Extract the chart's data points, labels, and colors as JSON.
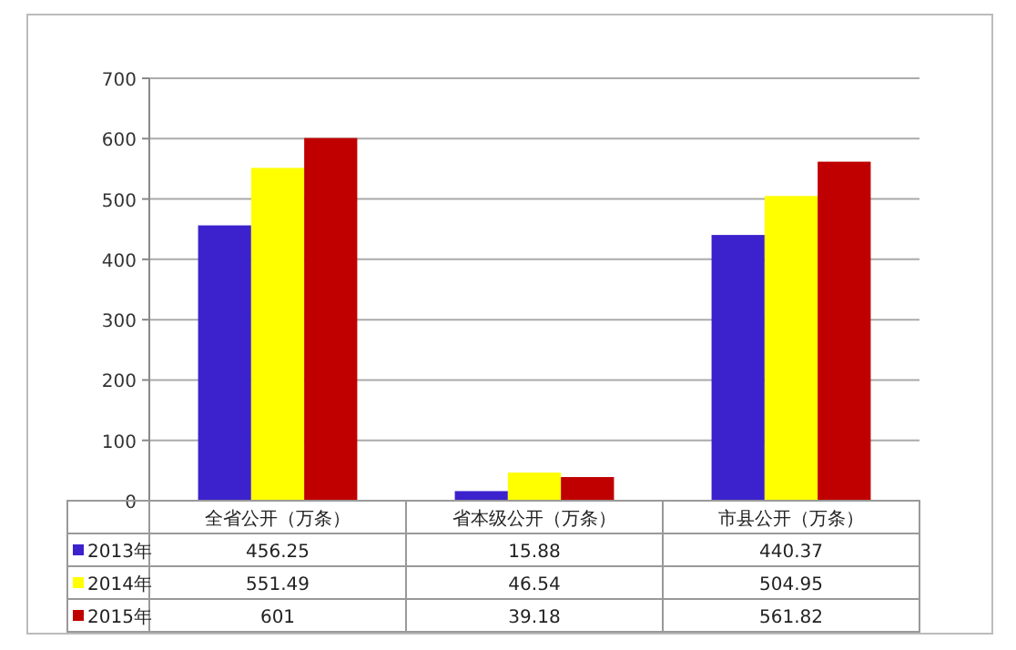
{
  "chart_data": {
    "type": "bar",
    "categories": [
      "全省公开（万条）",
      "省本级公开（万条）",
      "市县公开（万条）"
    ],
    "series": [
      {
        "name": "2013年",
        "color": "#3b22cc",
        "values": [
          456.25,
          15.88,
          440.37
        ]
      },
      {
        "name": "2014年",
        "color": "#ffff00",
        "values": [
          551.49,
          46.54,
          504.95
        ]
      },
      {
        "name": "2015年",
        "color": "#c00000",
        "values": [
          601,
          39.18,
          561.82
        ]
      }
    ],
    "ylim": [
      0,
      700
    ],
    "yticks": [
      0,
      100,
      200,
      300,
      400,
      500,
      600,
      700
    ],
    "grid": "y",
    "legend": "bottom left",
    "data_labels": true
  }
}
